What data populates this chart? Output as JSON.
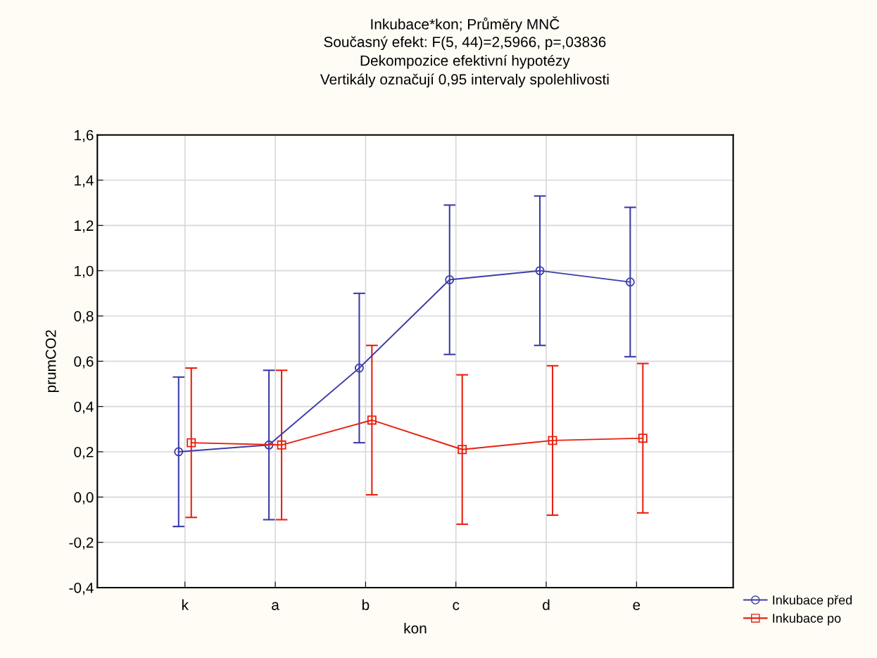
{
  "chart_data": {
    "type": "line",
    "title": "Inkubace*kon; Průměry MNČ",
    "subtitle": "Současný efekt: F(5, 44)=2,5966, p=,03836\nDekompozice efektivní hypotézy\nVertikály označují 0,95 intervaly spolehlivosti",
    "xlabel": "kon",
    "ylabel": "prumCO2",
    "categories": [
      "k",
      "a",
      "b",
      "c",
      "d",
      "e"
    ],
    "series": [
      {
        "name": "Inkubace před",
        "color": "#3c3ca8",
        "marker": "circle",
        "values": [
          0.2,
          0.23,
          0.57,
          0.96,
          1.0,
          0.95
        ],
        "errors": [
          0.33,
          0.33,
          0.33,
          0.33,
          0.33,
          0.33
        ]
      },
      {
        "name": "Inkubace po",
        "color": "#e82010",
        "marker": "square",
        "values": [
          0.24,
          0.23,
          0.34,
          0.21,
          0.25,
          0.26
        ],
        "errors": [
          0.33,
          0.33,
          0.33,
          0.33,
          0.33,
          0.33
        ]
      }
    ],
    "ylim": [
      -0.4,
      1.6
    ],
    "yticks": [
      {
        "value": -0.4,
        "label": "-0,4"
      },
      {
        "value": -0.2,
        "label": "-0,2"
      },
      {
        "value": 0.0,
        "label": "0,0"
      },
      {
        "value": 0.2,
        "label": "0,2"
      },
      {
        "value": 0.4,
        "label": "0,4"
      },
      {
        "value": 0.6,
        "label": "0,6"
      },
      {
        "value": 0.8,
        "label": "0,8"
      },
      {
        "value": 1.0,
        "label": "1,0"
      },
      {
        "value": 1.2,
        "label": "1,2"
      },
      {
        "value": 1.4,
        "label": "1,4"
      },
      {
        "value": 1.6,
        "label": "1,6"
      }
    ],
    "grid": true,
    "legend": "bottom right",
    "line_style": "solid"
  }
}
